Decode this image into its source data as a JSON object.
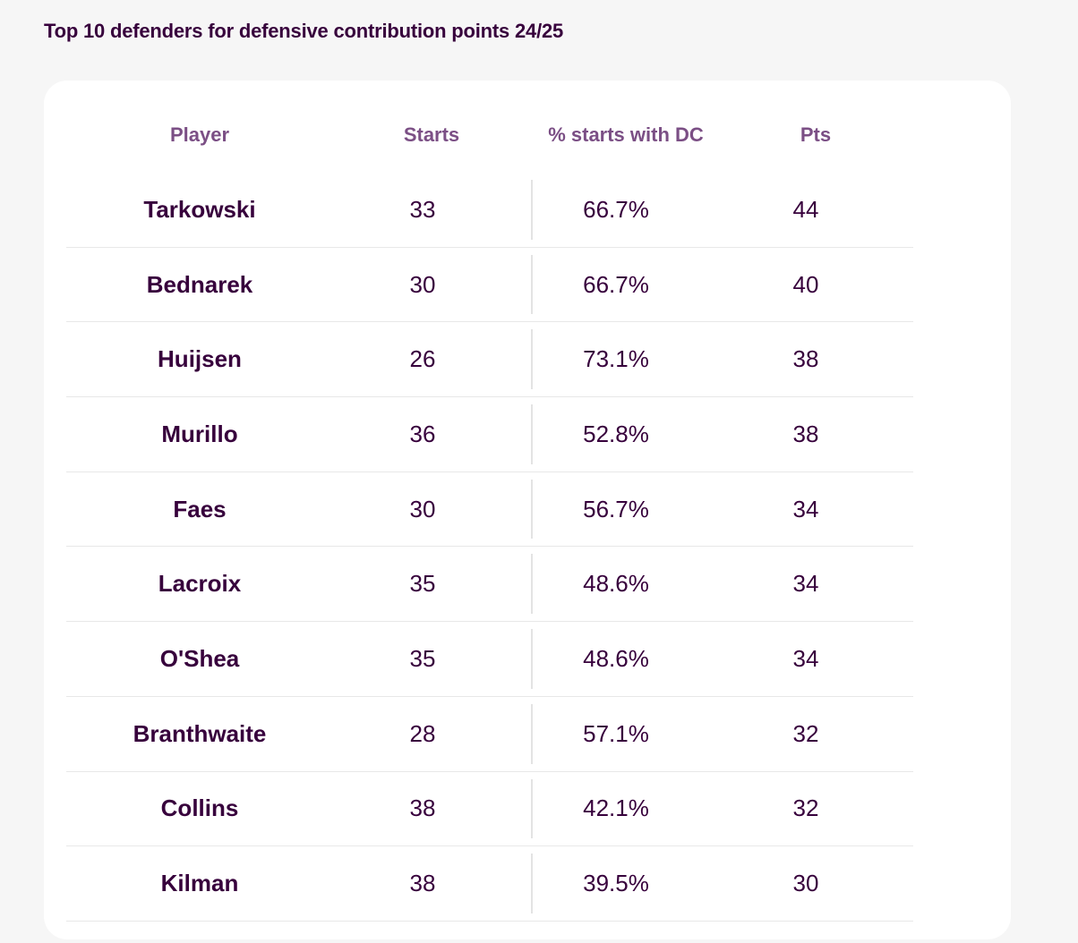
{
  "title": "Top 10 defenders for defensive contribution points 24/25",
  "colors": {
    "text": "#37003c",
    "header_text": "#7b4f85",
    "card_bg": "#ffffff",
    "page_bg": "#f6f6f6"
  },
  "chart_data": {
    "type": "table",
    "title": "Top 10 defenders for defensive contribution points 24/25",
    "columns": [
      "Player",
      "Starts",
      "% starts with DC",
      "Pts"
    ],
    "rows": [
      {
        "player": "Tarkowski",
        "starts": "33",
        "pct": "66.7%",
        "pts": "44"
      },
      {
        "player": "Bednarek",
        "starts": "30",
        "pct": "66.7%",
        "pts": "40"
      },
      {
        "player": "Huijsen",
        "starts": "26",
        "pct": "73.1%",
        "pts": "38"
      },
      {
        "player": "Murillo",
        "starts": "36",
        "pct": "52.8%",
        "pts": "38"
      },
      {
        "player": "Faes",
        "starts": "30",
        "pct": "56.7%",
        "pts": "34"
      },
      {
        "player": "Lacroix",
        "starts": "35",
        "pct": "48.6%",
        "pts": "34"
      },
      {
        "player": "O'Shea",
        "starts": "35",
        "pct": "48.6%",
        "pts": "34"
      },
      {
        "player": "Branthwaite",
        "starts": "28",
        "pct": "57.1%",
        "pts": "32"
      },
      {
        "player": "Collins",
        "starts": "38",
        "pct": "42.1%",
        "pts": "32"
      },
      {
        "player": "Kilman",
        "starts": "38",
        "pct": "39.5%",
        "pts": "30"
      }
    ]
  }
}
